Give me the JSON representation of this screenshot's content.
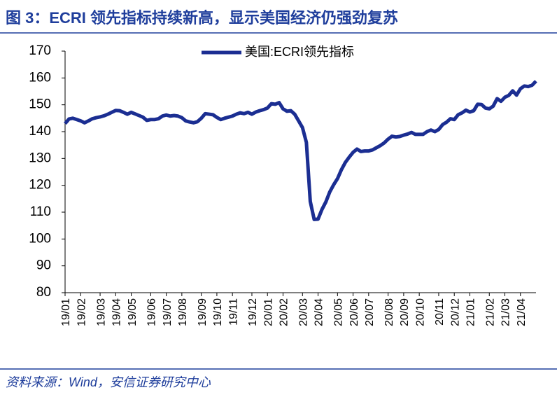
{
  "chart_data": {
    "type": "line",
    "title": "图 3：ECRI 领先指标持续新高，显示美国经济仍强劲复苏",
    "source": "资料来源：Wind，安信证券研究中心",
    "categories": [
      "19/01",
      null,
      null,
      null,
      "19/02",
      null,
      null,
      null,
      null,
      "19/03",
      null,
      null,
      null,
      "19/04",
      null,
      null,
      null,
      "19/05",
      null,
      null,
      null,
      null,
      "19/06",
      null,
      null,
      null,
      "19/07",
      null,
      null,
      null,
      "19/08",
      null,
      null,
      null,
      null,
      "19/09",
      null,
      null,
      null,
      "19/10",
      null,
      null,
      null,
      "19/11",
      null,
      null,
      null,
      null,
      "19/12",
      null,
      null,
      null,
      "20/01",
      null,
      null,
      null,
      "20/02",
      null,
      null,
      null,
      null,
      "20/03",
      null,
      null,
      null,
      "20/04",
      null,
      null,
      null,
      null,
      "20/05",
      null,
      null,
      null,
      "20/06",
      null,
      null,
      null,
      "20/07",
      null,
      null,
      null,
      null,
      "20/08",
      null,
      null,
      null,
      "20/09",
      null,
      null,
      null,
      "20/10",
      null,
      null,
      null,
      null,
      "20/11",
      null,
      null,
      null,
      "20/12",
      null,
      null,
      null,
      "21/01",
      null,
      null,
      null,
      null,
      "21/02",
      null,
      null,
      null,
      "21/03",
      null,
      null,
      null,
      "21/04",
      null,
      null,
      null,
      null
    ],
    "series": [
      {
        "name": "美国:ECRI领先指标",
        "color": "#1b2e92",
        "values": [
          143,
          144.7,
          145,
          144.5,
          144,
          143.3,
          144,
          144.8,
          145.2,
          145.5,
          145.9,
          146.5,
          147.2,
          147.9,
          147.8,
          147.2,
          146.5,
          147.2,
          146.6,
          146,
          145.4,
          144.2,
          144.5,
          144.5,
          144.8,
          145.8,
          146.2,
          145.8,
          146,
          145.8,
          145.2,
          144,
          143.6,
          143.3,
          143.7,
          145,
          146.7,
          146.5,
          146.3,
          145.3,
          144.5,
          145,
          145.4,
          145.8,
          146.5,
          147,
          146.7,
          147.2,
          146.5,
          147.3,
          147.8,
          148.2,
          148.8,
          150.4,
          150.2,
          150.8,
          148.5,
          147.6,
          147.8,
          146.5,
          144,
          141.5,
          136,
          114,
          107.3,
          107.4,
          111,
          113.8,
          117.5,
          120.2,
          122.5,
          125.8,
          128.5,
          130.5,
          132.3,
          133.5,
          132.6,
          132.8,
          132.8,
          133.2,
          134,
          134.8,
          135.8,
          137.2,
          138.3,
          138,
          138.2,
          138.7,
          139.1,
          139.7,
          139,
          139,
          139,
          140,
          140.6,
          140,
          140.8,
          142.6,
          143.5,
          144.8,
          144.5,
          146.3,
          147,
          148,
          147.3,
          147.8,
          150.2,
          150.1,
          148.8,
          148.5,
          149.5,
          152.3,
          151.3,
          152.8,
          153.5,
          155.2,
          153.6,
          156,
          157,
          156.8,
          157.3,
          158.8
        ]
      }
    ],
    "ylim": [
      80,
      170
    ],
    "yticks": [
      80,
      90,
      100,
      110,
      120,
      130,
      140,
      150,
      160,
      170
    ],
    "legend": "top"
  }
}
